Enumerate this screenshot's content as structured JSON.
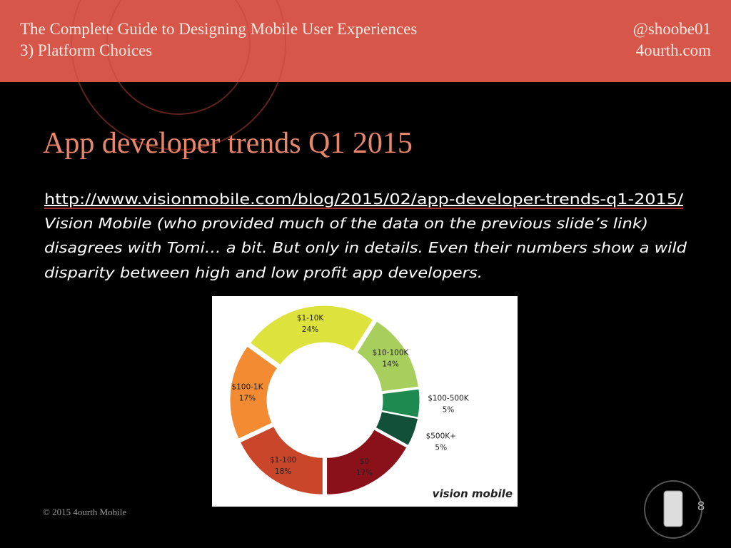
{
  "header": {
    "title": "The Complete Guide to Designing Mobile User Experiences",
    "subtitle": "3) Platform Choices",
    "handle": "@shoobe01",
    "site": "4ourth.com"
  },
  "slide": {
    "title": "App developer trends Q1 2015",
    "link": "http://www.visionmobile.com/blog/2015/02/app-developer-trends-q1-2015/",
    "body": [
      "Vision Mobile (who provided much of the data on the previous slide’s link)",
      "disagrees with Tomi… a bit. But only in details. Even their numbers show a wild",
      "disparity between high and low profit app developers."
    ]
  },
  "chart": {
    "type": "donut",
    "categories": [
      "$1-10K",
      "$10-100K",
      "$100-500K",
      "$500K+",
      "$0",
      "$1-100",
      "$100-1K"
    ],
    "values": [
      24,
      14,
      5,
      5,
      17,
      18,
      17
    ],
    "value_labels": [
      "24%",
      "14%",
      "5%",
      "5%",
      "17%",
      "18%",
      "17%"
    ],
    "colors": [
      "#dde23c",
      "#a8cf5e",
      "#1f8a4f",
      "#12503a",
      "#8a1119",
      "#c9462b",
      "#f38b32"
    ],
    "logo": "vision mobile"
  },
  "footer": {
    "copyright": "© 2015 4ourth Mobile",
    "page": "8"
  }
}
